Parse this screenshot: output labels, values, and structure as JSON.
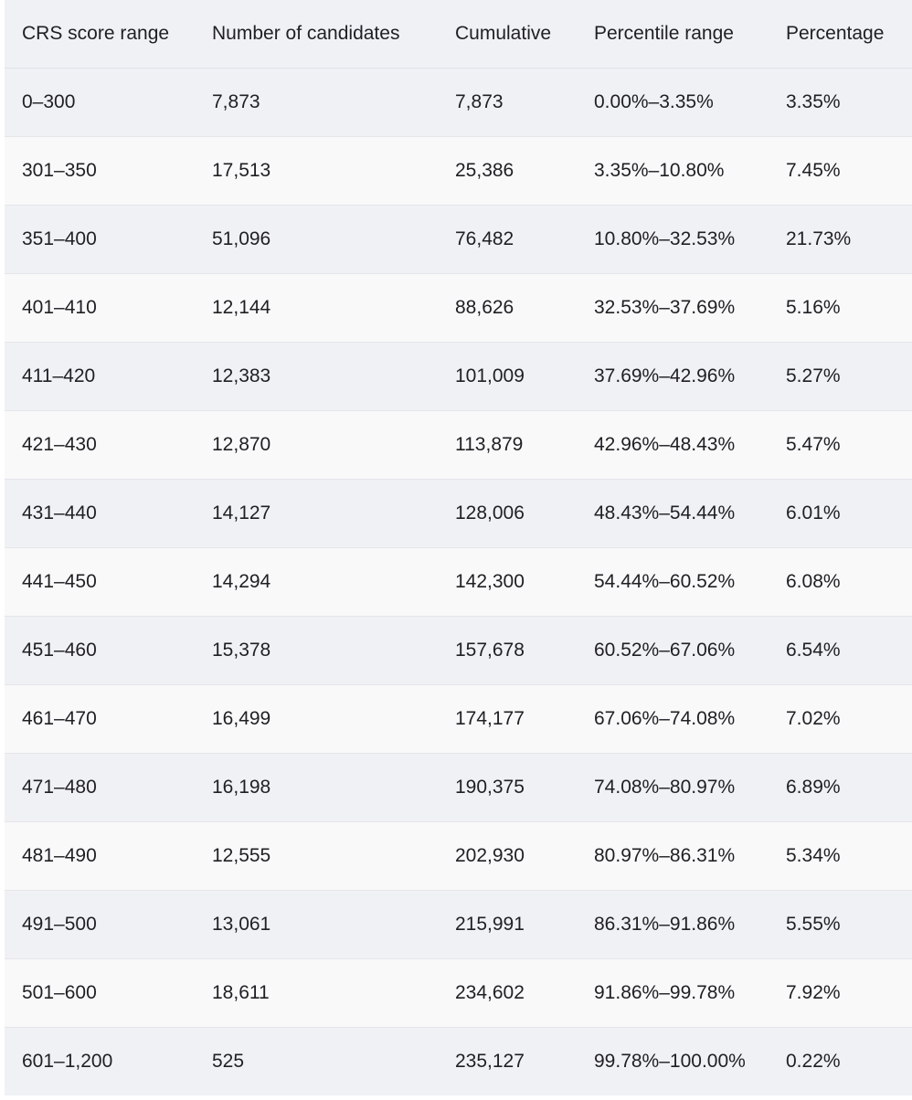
{
  "chart_data": {
    "type": "table",
    "columns": [
      "CRS score range",
      "Number of candidates",
      "Cumulative",
      "Percentile range",
      "Percentage"
    ],
    "rows": [
      [
        "0–300",
        "7,873",
        "7,873",
        "0.00%–3.35%",
        "3.35%"
      ],
      [
        "301–350",
        "17,513",
        "25,386",
        "3.35%–10.80%",
        "7.45%"
      ],
      [
        "351–400",
        "51,096",
        "76,482",
        "10.80%–32.53%",
        "21.73%"
      ],
      [
        "401–410",
        "12,144",
        "88,626",
        "32.53%–37.69%",
        "5.16%"
      ],
      [
        "411–420",
        "12,383",
        "101,009",
        "37.69%–42.96%",
        "5.27%"
      ],
      [
        "421–430",
        "12,870",
        "113,879",
        "42.96%–48.43%",
        "5.47%"
      ],
      [
        "431–440",
        "14,127",
        "128,006",
        "48.43%–54.44%",
        "6.01%"
      ],
      [
        "441–450",
        "14,294",
        "142,300",
        "54.44%–60.52%",
        "6.08%"
      ],
      [
        "451–460",
        "15,378",
        "157,678",
        "60.52%–67.06%",
        "6.54%"
      ],
      [
        "461–470",
        "16,499",
        "174,177",
        "67.06%–74.08%",
        "7.02%"
      ],
      [
        "471–480",
        "16,198",
        "190,375",
        "74.08%–80.97%",
        "6.89%"
      ],
      [
        "481–490",
        "12,555",
        "202,930",
        "80.97%–86.31%",
        "5.34%"
      ],
      [
        "491–500",
        "13,061",
        "215,991",
        "86.31%–91.86%",
        "5.55%"
      ],
      [
        "501–600",
        "18,611",
        "234,602",
        "91.86%–99.78%",
        "7.92%"
      ],
      [
        "601–1,200",
        "525",
        "235,127",
        "99.78%–100.00%",
        "0.22%"
      ]
    ]
  }
}
